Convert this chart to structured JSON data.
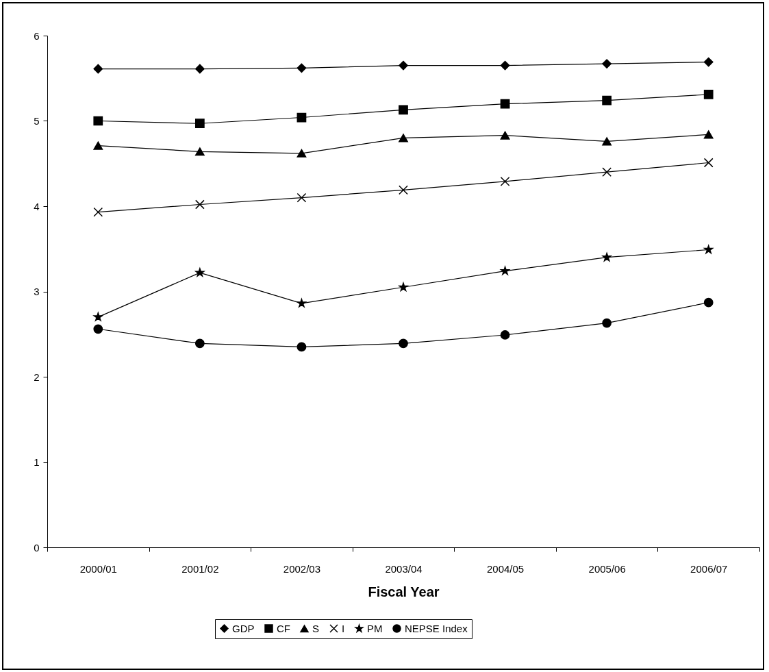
{
  "chart_data": {
    "type": "line",
    "xlabel": "Fiscal Year",
    "categories": [
      "2000/01",
      "2001/02",
      "2002/03",
      "2003/04",
      "2004/05",
      "2005/06",
      "2006/07"
    ],
    "ylim": [
      0,
      6
    ],
    "yticks": [
      0,
      1,
      2,
      3,
      4,
      5,
      6
    ],
    "grid": false,
    "legend": "bottom",
    "line_style": "solid",
    "series": [
      {
        "name": "GDP",
        "color": "#000000",
        "marker": "diamond",
        "values": [
          5.61,
          5.61,
          5.62,
          5.65,
          5.65,
          5.67,
          5.69
        ]
      },
      {
        "name": "CF",
        "color": "#000000",
        "marker": "square",
        "values": [
          5.0,
          4.97,
          5.04,
          5.13,
          5.2,
          5.24,
          5.31
        ]
      },
      {
        "name": "S",
        "color": "#000000",
        "marker": "triangle",
        "values": [
          4.71,
          4.64,
          4.62,
          4.8,
          4.83,
          4.76,
          4.84
        ]
      },
      {
        "name": "I",
        "color": "#000000",
        "marker": "cross",
        "values": [
          3.93,
          4.02,
          4.1,
          4.19,
          4.29,
          4.4,
          4.51
        ]
      },
      {
        "name": "PM",
        "color": "#000000",
        "marker": "star",
        "values": [
          2.7,
          3.22,
          2.86,
          3.05,
          3.24,
          3.4,
          3.49
        ]
      },
      {
        "name": "NEPSE Index",
        "color": "#000000",
        "marker": "circle",
        "values": [
          2.56,
          2.39,
          2.35,
          2.39,
          2.49,
          2.63,
          2.87
        ]
      }
    ]
  }
}
